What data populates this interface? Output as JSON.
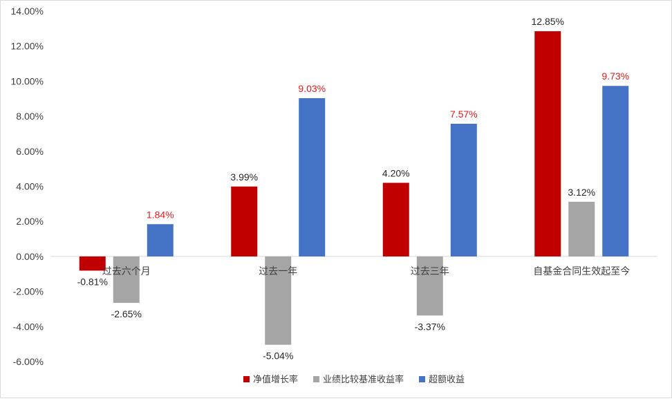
{
  "chart_data": {
    "type": "bar",
    "categories": [
      "过去六个月",
      "过去一年",
      "过去三年",
      "自基金合同生效起至今"
    ],
    "series": [
      {
        "name": "净值增长率",
        "color": "#c00000",
        "values": [
          -0.81,
          3.99,
          4.2,
          12.85
        ],
        "labels": [
          "-0.81%",
          "3.99%",
          "4.20%",
          "12.85%"
        ],
        "label_color": "#262626"
      },
      {
        "name": "业绩比较基准收益率",
        "color": "#a5a5a5",
        "values": [
          -2.65,
          -5.04,
          -3.37,
          3.12
        ],
        "labels": [
          "-2.65%",
          "-5.04%",
          "-3.37%",
          "3.12%"
        ],
        "label_color": "#262626"
      },
      {
        "name": "超额收益",
        "color": "#4472c4",
        "values": [
          1.84,
          9.03,
          7.57,
          9.73
        ],
        "labels": [
          "1.84%",
          "9.03%",
          "7.57%",
          "9.73%"
        ],
        "label_color": "#e31a1c"
      }
    ],
    "ylim": [
      -6,
      14
    ],
    "yticks": [
      14,
      12,
      10,
      8,
      6,
      4,
      2,
      0,
      -2,
      -4,
      -6
    ],
    "ytick_labels": [
      "14.00%",
      "12.00%",
      "10.00%",
      "8.00%",
      "6.00%",
      "4.00%",
      "2.00%",
      "0.00%",
      "-2.00%",
      "-4.00%",
      "-6.00%"
    ],
    "legend_position": "bottom",
    "grid": false
  }
}
